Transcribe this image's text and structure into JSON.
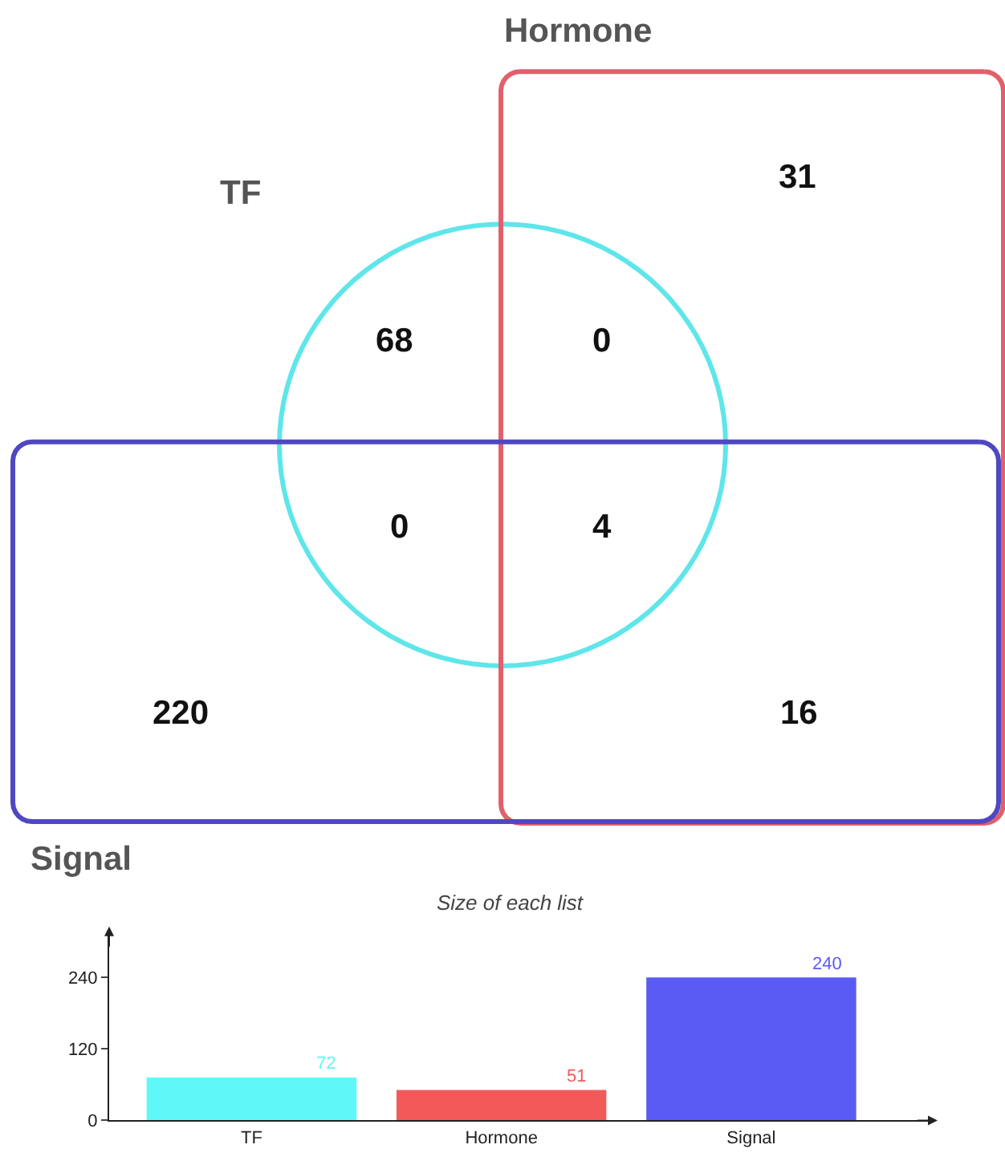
{
  "chart_data": [
    {
      "type": "other",
      "categories": [
        "TF",
        "Hormone",
        "Signal"
      ],
      "colors": [
        "#5ee6ea",
        "#e0606c",
        "#5048c0"
      ],
      "annotations": [
        "68",
        "0",
        "0",
        "4",
        "31",
        "220",
        "16"
      ]
    },
    {
      "type": "bar",
      "title": "Size of each list",
      "categories": [
        "TF",
        "Hormone",
        "Signal"
      ],
      "values": [
        72,
        51,
        240
      ],
      "colors": [
        "#5ff8f8",
        "#f25a5a",
        "#5a5af5"
      ],
      "ylim": [
        0,
        320
      ],
      "yticks": [
        0,
        120,
        240
      ],
      "data_labels": true
    }
  ]
}
